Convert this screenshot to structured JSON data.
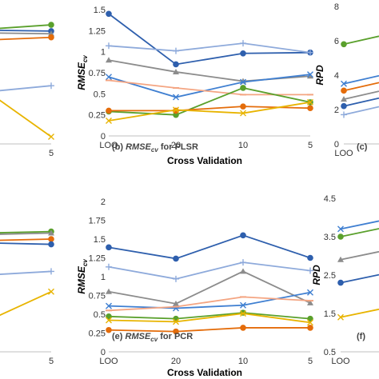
{
  "colors": {
    "dark_blue": "#2e5fad",
    "light_blue": "#8eaadb",
    "gray": "#8c8c8c",
    "green": "#5aa02c",
    "orange": "#e46c0a",
    "salmon": "#f4a582",
    "yellow": "#e8b400",
    "mid_blue": "#3f7fd1",
    "marker_blue": "#5b9bd5"
  },
  "x_axis_title": "Cross Validation",
  "chart_data": [
    {
      "type": "line",
      "panel": "a-partial",
      "categories": [
        "LOO",
        "20",
        "10",
        "5"
      ],
      "visible_tick_labels": [
        "5"
      ],
      "series": [
        {
          "color": "green",
          "values": [
            null,
            null,
            1.28,
            1.33
          ]
        },
        {
          "color": "dark_blue",
          "values": [
            null,
            null,
            1.27,
            1.26
          ]
        },
        {
          "color": "gray",
          "values": [
            null,
            null,
            1.24,
            1.23
          ]
        },
        {
          "color": "orange",
          "values": [
            null,
            null,
            1.16,
            1.19
          ]
        },
        {
          "color": "light_blue",
          "values": [
            null,
            null,
            0.58,
            0.65
          ]
        },
        {
          "color": "yellow",
          "values": [
            null,
            null,
            0.6,
            0.08
          ]
        }
      ]
    },
    {
      "type": "line",
      "panel": "b",
      "caption_prefix": "(b) ",
      "caption_symbol": "RMSE",
      "caption_sub": "cv",
      "caption_suffix": " for PLSR",
      "ylabel": "RMSE",
      "ylabel_sub": "cv",
      "ylim": [
        0,
        1.5
      ],
      "yticks": [
        "0",
        "0.25",
        "0.5",
        "0.75",
        "1",
        "1.25",
        "1.5"
      ],
      "categories": [
        "LOO",
        "20",
        "10",
        "5"
      ],
      "series": [
        {
          "color": "dark_blue",
          "values": [
            1.45,
            0.85,
            0.98,
            0.99
          ]
        },
        {
          "color": "light_blue",
          "values": [
            1.07,
            1.01,
            1.1,
            0.99
          ]
        },
        {
          "color": "gray",
          "values": [
            0.9,
            0.76,
            0.65,
            0.71
          ]
        },
        {
          "color": "mid_blue",
          "values": [
            0.7,
            0.46,
            0.64,
            0.73
          ]
        },
        {
          "color": "salmon",
          "values": [
            0.66,
            0.57,
            0.49,
            0.49
          ]
        },
        {
          "color": "green",
          "values": [
            0.29,
            0.25,
            0.57,
            0.4
          ]
        },
        {
          "color": "orange",
          "values": [
            0.3,
            0.3,
            0.35,
            0.33
          ]
        },
        {
          "color": "yellow",
          "values": [
            0.18,
            0.31,
            0.27,
            0.4
          ]
        }
      ]
    },
    {
      "type": "line",
      "panel": "c-partial",
      "caption": "(c) ",
      "ylabel": "RPD",
      "ylim": [
        0,
        8
      ],
      "yticks": [
        "0",
        "2",
        "4",
        "6",
        "8"
      ],
      "categories": [
        "LOO"
      ],
      "series": [
        {
          "color": "green",
          "values": [
            5.8
          ]
        },
        {
          "color": "mid_blue",
          "values": [
            3.5
          ]
        },
        {
          "color": "orange",
          "values": [
            3.1
          ]
        },
        {
          "color": "gray",
          "values": [
            2.6
          ]
        },
        {
          "color": "dark_blue",
          "values": [
            2.2
          ]
        },
        {
          "color": "light_blue",
          "values": [
            1.7
          ]
        }
      ]
    },
    {
      "type": "line",
      "panel": "d-partial",
      "categories": [
        "LOO",
        "20",
        "10",
        "5"
      ],
      "visible_tick_labels": [
        "5"
      ],
      "series": [
        {
          "color": "green",
          "values": [
            null,
            null,
            1.58,
            1.6
          ]
        },
        {
          "color": "gray",
          "values": [
            null,
            null,
            1.56,
            1.58
          ]
        },
        {
          "color": "orange",
          "values": [
            null,
            null,
            1.48,
            1.5
          ]
        },
        {
          "color": "dark_blue",
          "values": [
            null,
            null,
            1.45,
            1.43
          ]
        },
        {
          "color": "light_blue",
          "values": [
            null,
            null,
            1.02,
            1.07
          ]
        },
        {
          "color": "yellow",
          "values": [
            null,
            null,
            0.4,
            0.8
          ]
        }
      ]
    },
    {
      "type": "line",
      "panel": "e",
      "caption_prefix": "(e) ",
      "caption_symbol": "RMSE",
      "caption_sub": "cv",
      "caption_suffix": " for PCR",
      "ylabel": "RMSE",
      "ylabel_sub": "cv",
      "ylim": [
        0,
        2
      ],
      "yticks": [
        "0",
        "0.25",
        "0.5",
        "0.75",
        "1",
        "1.25",
        "1.5",
        "1.75",
        "2"
      ],
      "categories": [
        "LOO",
        "20",
        "10",
        "5"
      ],
      "series": [
        {
          "color": "dark_blue",
          "values": [
            1.39,
            1.24,
            1.55,
            1.25
          ]
        },
        {
          "color": "light_blue",
          "values": [
            1.13,
            0.97,
            1.19,
            1.08
          ]
        },
        {
          "color": "gray",
          "values": [
            0.8,
            0.64,
            1.07,
            0.65
          ]
        },
        {
          "color": "mid_blue",
          "values": [
            0.61,
            0.58,
            0.62,
            0.79
          ]
        },
        {
          "color": "salmon",
          "values": [
            0.55,
            0.6,
            0.73,
            0.68
          ]
        },
        {
          "color": "green",
          "values": [
            0.47,
            0.44,
            0.52,
            0.44
          ]
        },
        {
          "color": "yellow",
          "values": [
            0.42,
            0.4,
            0.51,
            0.39
          ]
        },
        {
          "color": "orange",
          "values": [
            0.29,
            0.27,
            0.32,
            0.32
          ]
        }
      ]
    },
    {
      "type": "line",
      "panel": "f-partial",
      "caption": "(f)",
      "ylabel": "RPD",
      "ylim": [
        0.5,
        4.5
      ],
      "yticks": [
        "0.5",
        "1.5",
        "2.5",
        "3.5",
        "4.5"
      ],
      "categories": [
        "LOO"
      ],
      "series": [
        {
          "color": "mid_blue",
          "values": [
            3.7
          ]
        },
        {
          "color": "green",
          "values": [
            3.5
          ]
        },
        {
          "color": "gray",
          "values": [
            2.9
          ]
        },
        {
          "color": "dark_blue",
          "values": [
            2.3
          ]
        },
        {
          "color": "yellow",
          "values": [
            1.4
          ]
        }
      ]
    }
  ]
}
